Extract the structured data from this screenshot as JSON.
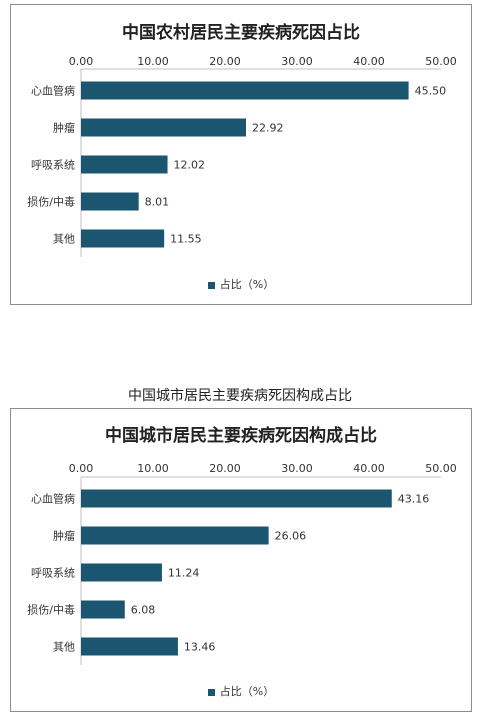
{
  "colors": {
    "bar": "#1b5570",
    "axis": "#bfbfbf",
    "border": "#8c8c8c"
  },
  "outer_caption": "中国城市居民主要疾病死因构成占比",
  "chart_data": [
    {
      "type": "bar",
      "orientation": "horizontal",
      "title": "中国农村居民主要疾病死因占比",
      "categories": [
        "心血管病",
        "肿瘤",
        "呼吸系统",
        "损伤/中毒",
        "其他"
      ],
      "series": [
        {
          "name": "占比（%）",
          "values": [
            45.5,
            22.92,
            12.02,
            8.01,
            11.55
          ]
        }
      ],
      "value_labels": [
        "45.50",
        "22.92",
        "12.02",
        "8.01",
        "11.55"
      ],
      "xlim": [
        0,
        50
      ],
      "xticks": [
        "0.00",
        "10.00",
        "20.00",
        "30.00",
        "40.00",
        "50.00"
      ],
      "xaxis_position": "top",
      "grid": false,
      "legend_position": "bottom"
    },
    {
      "type": "bar",
      "orientation": "horizontal",
      "title": "中国城市居民主要疾病死因构成占比",
      "categories": [
        "心血管病",
        "肿瘤",
        "呼吸系统",
        "损伤/中毒",
        "其他"
      ],
      "series": [
        {
          "name": "占比（%）",
          "values": [
            43.16,
            26.06,
            11.24,
            6.08,
            13.46
          ]
        }
      ],
      "value_labels": [
        "43.16",
        "26.06",
        "11.24",
        "6.08",
        "13.46"
      ],
      "xlim": [
        0,
        50
      ],
      "xticks": [
        "0.00",
        "10.00",
        "20.00",
        "30.00",
        "40.00",
        "50.00"
      ],
      "xaxis_position": "top",
      "grid": false,
      "legend_position": "bottom"
    }
  ]
}
